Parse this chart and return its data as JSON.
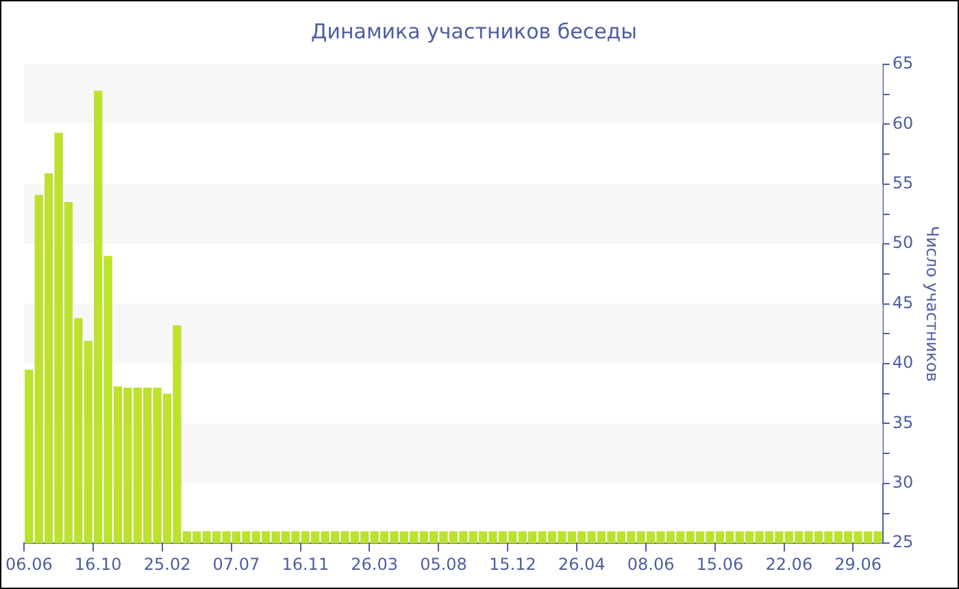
{
  "chart_data": {
    "type": "bar",
    "title": "Динамика участников беседы",
    "ylabel": "Число участников",
    "categories": [
      "06.06",
      null,
      null,
      null,
      null,
      null,
      null,
      "16.10",
      null,
      null,
      null,
      null,
      null,
      null,
      "25.02",
      null,
      null,
      null,
      null,
      null,
      null,
      "07.07",
      null,
      null,
      null,
      null,
      null,
      null,
      "16.11",
      null,
      null,
      null,
      null,
      null,
      null,
      "26.03",
      null,
      null,
      null,
      null,
      null,
      null,
      "05.08",
      null,
      null,
      null,
      null,
      null,
      null,
      "15.12",
      null,
      null,
      null,
      null,
      null,
      null,
      "26.04",
      null,
      null,
      null,
      null,
      null,
      null,
      "08.06",
      null,
      null,
      null,
      null,
      null,
      null,
      "15.06",
      null,
      null,
      null,
      null,
      null,
      null,
      "22.06",
      null,
      null,
      null,
      null,
      null,
      null,
      "29.06",
      null,
      null
    ],
    "values": [
      39.5,
      54.1,
      55.9,
      59.3,
      53.5,
      43.8,
      41.9,
      62.8,
      49.0,
      38.1,
      38.0,
      38.0,
      38.0,
      38.0,
      37.5,
      43.2,
      26,
      26,
      26,
      26,
      26,
      26,
      26,
      26,
      26,
      26,
      26,
      26,
      26,
      26,
      26,
      26,
      26,
      26,
      26,
      26,
      26,
      26,
      26,
      26,
      26,
      26,
      26,
      26,
      26,
      26,
      26,
      26,
      26,
      26,
      26,
      26,
      26,
      26,
      26,
      26,
      26,
      26,
      26,
      26,
      26,
      26,
      26,
      26,
      26,
      26,
      26,
      26,
      26,
      26,
      26,
      26,
      26,
      26,
      26,
      26,
      26,
      26,
      26,
      26,
      26,
      26,
      26,
      26,
      26,
      26,
      26
    ],
    "color": "#bde12f",
    "ylim": [
      25,
      65
    ],
    "yticks": [
      25,
      {
        "value": 27.5,
        "label": null
      },
      30,
      {
        "value": 32.5,
        "label": null
      },
      35,
      {
        "value": 37.5,
        "label": null
      },
      40,
      {
        "value": 42.5,
        "label": null
      },
      45,
      {
        "value": 47.5,
        "label": null
      },
      50,
      {
        "value": 52.5,
        "label": null
      },
      55,
      {
        "value": 57.5,
        "label": null
      },
      60,
      {
        "value": 62.5,
        "label": null
      },
      65
    ],
    "bands": [
      {
        "axis": "y",
        "from": 30,
        "to": 35,
        "color": "#f7f7f7"
      },
      {
        "axis": "y",
        "from": 40,
        "to": 45,
        "color": "#f7f7f7"
      },
      {
        "axis": "y",
        "from": 50,
        "to": 55,
        "color": "#f7f7f7"
      },
      {
        "axis": "y",
        "from": 60,
        "to": 65,
        "color": "#f7f7f7"
      }
    ],
    "grid": false,
    "legend": false
  }
}
